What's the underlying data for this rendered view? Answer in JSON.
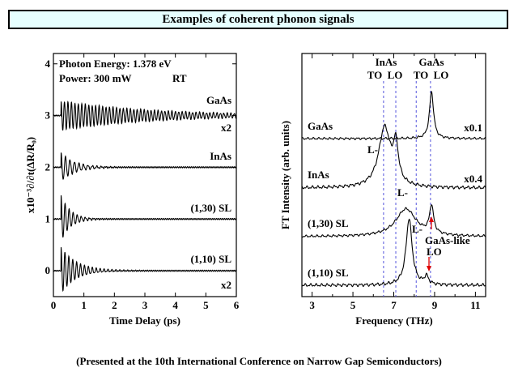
{
  "title": "Examples of coherent phonon signals",
  "footnote": "(Presented at the 10th International Conference on Narrow Gap Semiconductors)",
  "chart_data": [
    {
      "type": "line",
      "xlabel": "Time Delay (ps)",
      "ylabel": "x10⁻³∂/∂t(ΔR/R₀)",
      "xlim": [
        0,
        6
      ],
      "ylim": [
        -0.5,
        4.2
      ],
      "xticks": [
        0,
        1,
        2,
        3,
        4,
        5,
        6
      ],
      "yticks": [
        0,
        1,
        2,
        3,
        4
      ],
      "annotations": [
        "Photon Energy: 1.378 eV",
        "Power: 300 mW",
        "RT"
      ],
      "series": [
        {
          "name": "GaAs",
          "multiplier": "x2",
          "baseline": 3.0,
          "amplitude": 0.28,
          "frequency_thz": 8.8,
          "decay_ps": 3.0
        },
        {
          "name": "InAs",
          "multiplier": "",
          "baseline": 2.0,
          "amplitude": 0.28,
          "frequency_thz": 6.8,
          "decay_ps": 0.45
        },
        {
          "name": "(1,30) SL",
          "multiplier": "",
          "baseline": 1.0,
          "amplitude": 0.45,
          "frequency_thz": 7.5,
          "decay_ps": 0.3
        },
        {
          "name": "(1,10) SL",
          "multiplier": "x2",
          "baseline": 0.0,
          "amplitude": 0.45,
          "frequency_thz": 7.8,
          "decay_ps": 0.5
        }
      ]
    },
    {
      "type": "line",
      "xlabel": "Frequency (THz)",
      "ylabel": "FT Intensity (arb. units)",
      "xlim": [
        2.5,
        11.5
      ],
      "xticks": [
        3,
        5,
        7,
        9,
        11
      ],
      "reference_lines": [
        {
          "group": "InAs",
          "label": "TO",
          "x": 6.5
        },
        {
          "group": "InAs",
          "label": "LO",
          "x": 7.1
        },
        {
          "group": "GaAs",
          "label": "TO",
          "x": 8.1
        },
        {
          "group": "GaAs",
          "label": "LO",
          "x": 8.8
        }
      ],
      "series": [
        {
          "name": "GaAs",
          "multiplier": "x0.1",
          "peaks": [
            {
              "x": 8.85,
              "height": 1.0,
              "width": 0.12
            }
          ]
        },
        {
          "name": "InAs",
          "multiplier": "x0.4",
          "peak_label": "L-",
          "peaks": [
            {
              "x": 6.55,
              "height": 0.9,
              "width": 0.35
            },
            {
              "x": 7.1,
              "height": 0.55,
              "width": 0.15
            }
          ]
        },
        {
          "name": "(1,30) SL",
          "multiplier": "",
          "peak_label": "L-",
          "peaks": [
            {
              "x": 7.6,
              "height": 0.55,
              "width": 0.6
            },
            {
              "x": 8.85,
              "height": 0.55,
              "width": 0.12
            }
          ]
        },
        {
          "name": "(1,10) SL",
          "multiplier": "",
          "peak_label": "L-",
          "peaks": [
            {
              "x": 7.75,
              "height": 1.0,
              "width": 0.18
            },
            {
              "x": 8.6,
              "height": 0.12,
              "width": 0.12
            }
          ]
        }
      ],
      "annotations": [
        "GaAs-like",
        "LO"
      ]
    }
  ]
}
